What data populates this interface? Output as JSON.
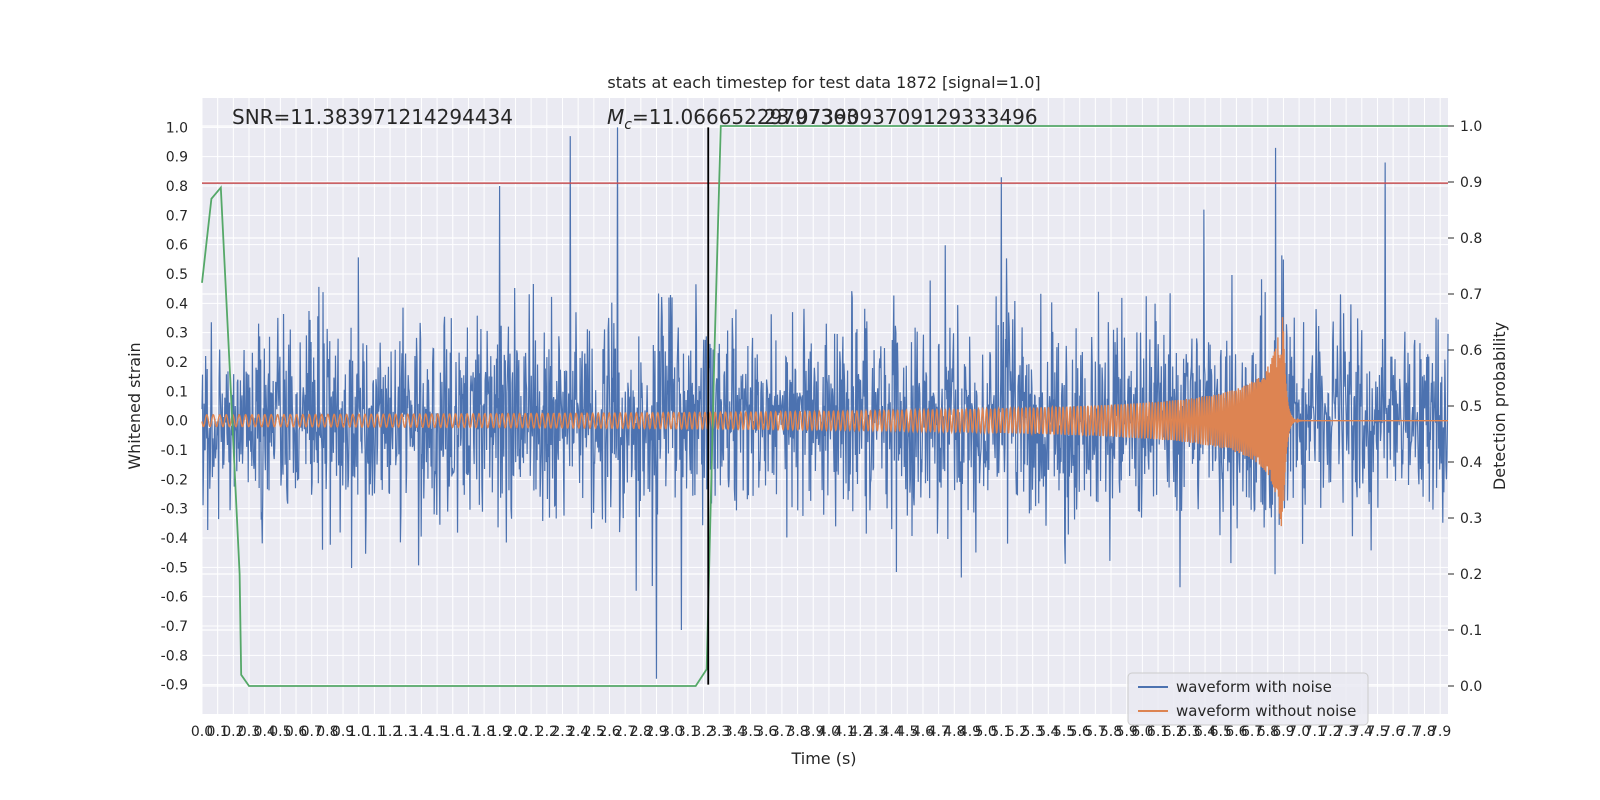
{
  "chart_data": {
    "type": "line",
    "title": "stats at each timestep for test data 1872 [signal=1.0]",
    "xlabel": "Time (s)",
    "ylabel": "Whitened strain",
    "y2label": "Detection probability",
    "xlim": [
      0.0,
      7.95
    ],
    "ylim": [
      -1.0,
      1.1
    ],
    "y2lim": [
      -0.05,
      1.05
    ],
    "x_ticks": [
      0.0,
      0.1,
      0.2,
      0.3,
      0.4,
      0.5,
      0.6,
      0.7,
      0.8,
      0.9,
      1.0,
      1.1,
      1.2,
      1.3,
      1.4,
      1.5,
      1.6,
      1.7,
      1.8,
      1.9,
      2.0,
      2.1,
      2.2,
      2.3,
      2.4,
      2.5,
      2.6,
      2.7,
      2.8,
      2.9,
      3.0,
      3.1,
      3.2,
      3.3,
      3.4,
      3.5,
      3.6,
      3.7,
      3.8,
      3.9,
      4.0,
      4.1,
      4.2,
      4.3,
      4.4,
      4.5,
      4.6,
      4.7,
      4.8,
      4.9,
      5.0,
      5.1,
      5.2,
      5.3,
      5.4,
      5.5,
      5.6,
      5.7,
      5.8,
      5.9,
      6.0,
      6.1,
      6.2,
      6.3,
      6.4,
      6.5,
      6.6,
      6.7,
      6.8,
      6.9,
      7.0,
      7.1,
      7.2,
      7.3,
      7.4,
      7.5,
      7.6,
      7.7,
      7.8,
      7.9
    ],
    "y_ticks": [
      1.0,
      0.9,
      0.8,
      0.7,
      0.6,
      0.5,
      0.4,
      0.3,
      0.2,
      0.1,
      0.0,
      -0.1,
      -0.2,
      -0.3,
      -0.4,
      -0.5,
      -0.6,
      -0.7,
      -0.8,
      -0.9
    ],
    "y2_ticks": [
      1.0,
      0.9,
      0.8,
      0.7,
      0.6,
      0.5,
      0.4,
      0.3,
      0.2,
      0.1,
      0.0
    ],
    "threshold_y": 0.81,
    "event_time": 3.23,
    "noise": {
      "name": "waveform with noise",
      "color": "#4c72b0",
      "std": 0.17,
      "spike_times": [
        1.9,
        2.35,
        2.65,
        2.9,
        5.1,
        6.85,
        7.55
      ],
      "spike_values": [
        0.8,
        0.97,
        1.0,
        -0.88,
        0.83,
        0.93,
        0.88
      ]
    },
    "signal": {
      "name": "waveform without noise",
      "color": "#dd8452",
      "merger_time": 6.9,
      "start_amplitude": 0.02,
      "peak_amplitude": 0.36,
      "start_freq_hz": 24
    },
    "probability": {
      "color": "#55a868",
      "x": [
        0.0,
        0.06,
        0.12,
        0.18,
        0.24,
        0.25,
        0.3,
        0.35,
        3.15,
        3.22,
        3.27,
        3.31,
        7.95
      ],
      "y": [
        0.72,
        0.87,
        0.89,
        0.55,
        0.2,
        0.02,
        0.0,
        0.0,
        0.0,
        0.03,
        0.6,
        1.0,
        1.0
      ]
    },
    "threshold_color": "#c44e52",
    "event_color": "#000000",
    "annotations": {
      "snr": "SNR=11.383971214294434",
      "mc_prefix": "M",
      "mc_sub": "c",
      "mc_value": "=11.06665229797363",
      "overlap": "23.0739093709129333496"
    },
    "legend": {
      "position": "lower-right",
      "entries": [
        "waveform with noise",
        "waveform without noise"
      ]
    },
    "grid": true,
    "background": "#eaeaf2"
  }
}
